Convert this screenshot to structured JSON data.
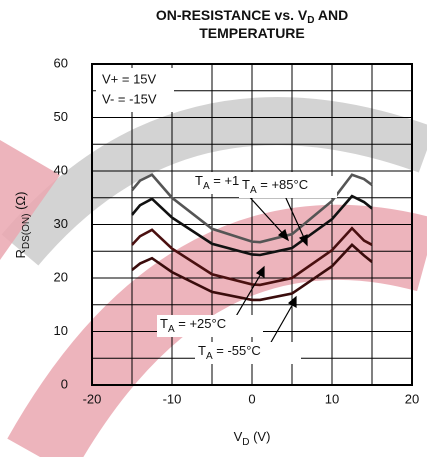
{
  "chart_data": {
    "type": "line",
    "title": [
      [
        "ON-RESISTANCE vs. V",
        "D",
        " AND"
      ],
      [
        "TEMPERATURE"
      ]
    ],
    "xlabel": [
      "V",
      "D",
      " (V)"
    ],
    "ylabel": [
      "R",
      "DS(ON)",
      " (Ω)"
    ],
    "x": [
      -15,
      -14,
      -12.5,
      -10,
      -5,
      0,
      1,
      5,
      10,
      12.5,
      14,
      15
    ],
    "series": [
      {
        "name": [
          "T",
          "A",
          " = +125°C"
        ],
        "color": "#555555",
        "values": [
          36.4,
          38.2,
          39.3,
          35.0,
          29.2,
          26.8,
          26.7,
          28.2,
          34.4,
          39.3,
          38.5,
          37.4
        ]
      },
      {
        "name": [
          "T",
          "A",
          " = +85°C"
        ],
        "color": "#111111",
        "values": [
          31.8,
          33.6,
          34.8,
          31.3,
          26.4,
          24.4,
          24.3,
          25.6,
          31.0,
          35.3,
          34.2,
          33.0
        ]
      },
      {
        "name": [
          "T",
          "A",
          " = +25°C"
        ],
        "color": "#4a1010",
        "values": [
          26.2,
          27.8,
          29.0,
          25.5,
          20.7,
          18.8,
          18.7,
          20.0,
          25.2,
          29.3,
          27.0,
          26.2
        ]
      },
      {
        "name": [
          "T",
          "A",
          " = -55°C"
        ],
        "color": "#3a0c0c",
        "values": [
          21.5,
          22.7,
          23.7,
          21.1,
          17.4,
          15.9,
          15.9,
          17.1,
          22.2,
          26.2,
          24.2,
          23.0
        ]
      }
    ],
    "notes": [
      "V+ = 15V",
      "V- = -15V"
    ],
    "xlim": [
      -20,
      20
    ],
    "xticks": [
      -20,
      -10,
      0,
      10,
      20
    ],
    "xgrid": [
      -15,
      -10,
      -5,
      0,
      5,
      10,
      15
    ],
    "ylim": [
      0,
      60
    ],
    "yticks": [
      0,
      10,
      20,
      30,
      40,
      50,
      60
    ],
    "ygrid": [
      5,
      10,
      15,
      20,
      25,
      30,
      35,
      40,
      45,
      50,
      55
    ],
    "grid": true
  }
}
